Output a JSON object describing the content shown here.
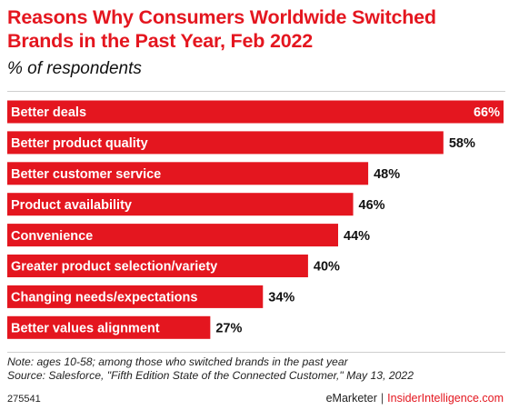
{
  "title": "Reasons Why Consumers Worldwide Switched Brands in the Past Year, Feb 2022",
  "subtitle": "% of respondents",
  "note": "Note: ages 10-58; among those who switched brands in the past year",
  "source": "Source: Salesforce, \"Fifth Edition State of the Connected Customer,\" May 13, 2022",
  "footer": {
    "id": "275541",
    "brand": "eMarketer",
    "separator": "|",
    "brand2": "InsiderIntelligence.com"
  },
  "colors": {
    "bar": "#e4161f",
    "title": "#e4161f",
    "text": "#111111"
  },
  "chart_data": {
    "type": "bar",
    "orientation": "horizontal",
    "categories": [
      "Better deals",
      "Better product quality",
      "Better customer service",
      "Product availability",
      "Convenience",
      "Greater product selection/variety",
      "Changing needs/expectations",
      "Better values alignment"
    ],
    "values": [
      66,
      58,
      48,
      46,
      44,
      40,
      34,
      27
    ],
    "value_labels": [
      "66%",
      "58%",
      "48%",
      "46%",
      "44%",
      "40%",
      "34%",
      "27%"
    ],
    "xlim": [
      0,
      66
    ],
    "grid": false,
    "legend": "none"
  }
}
